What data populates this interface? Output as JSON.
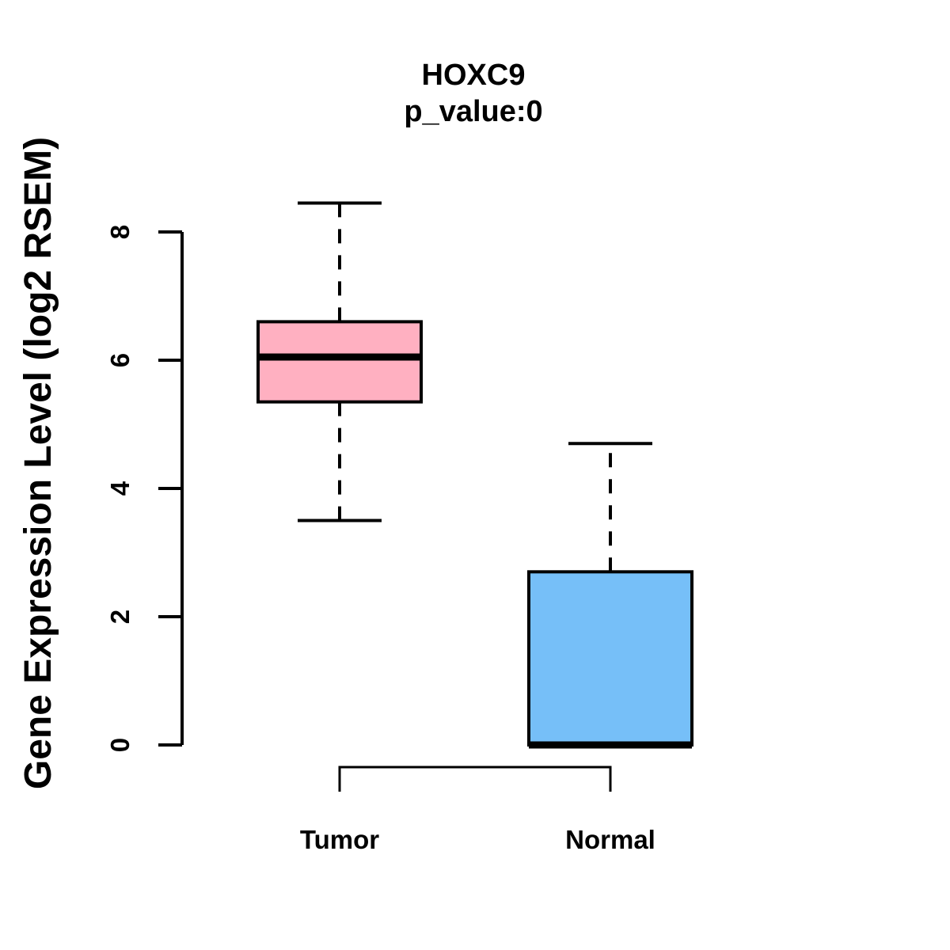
{
  "page": {
    "background": "#FFFFFF"
  },
  "chart_data": {
    "type": "boxplot",
    "title": "HOXC9",
    "subtitle": "p_value:0",
    "ylabel": "Gene Expression Level (log2 RSEM)",
    "xlabel": "",
    "ylim": [
      0,
      8
    ],
    "yticks": [
      "0",
      "2",
      "4",
      "6",
      "8"
    ],
    "categories": [
      "Tumor",
      "Normal"
    ],
    "grid": false,
    "legend_position": "none",
    "stroke_color": "#000000",
    "series": [
      {
        "name": "Tumor",
        "box_color": "#FFB0C1",
        "whisker_low": 3.5,
        "q1": 5.35,
        "median": 6.05,
        "q3": 6.6,
        "whisker_high": 8.45,
        "outliers": []
      },
      {
        "name": "Normal",
        "box_color": "#76BFF8",
        "whisker_low": 0,
        "q1": 0,
        "median": 0,
        "q3": 2.7,
        "whisker_high": 4.7,
        "outliers": []
      }
    ]
  }
}
